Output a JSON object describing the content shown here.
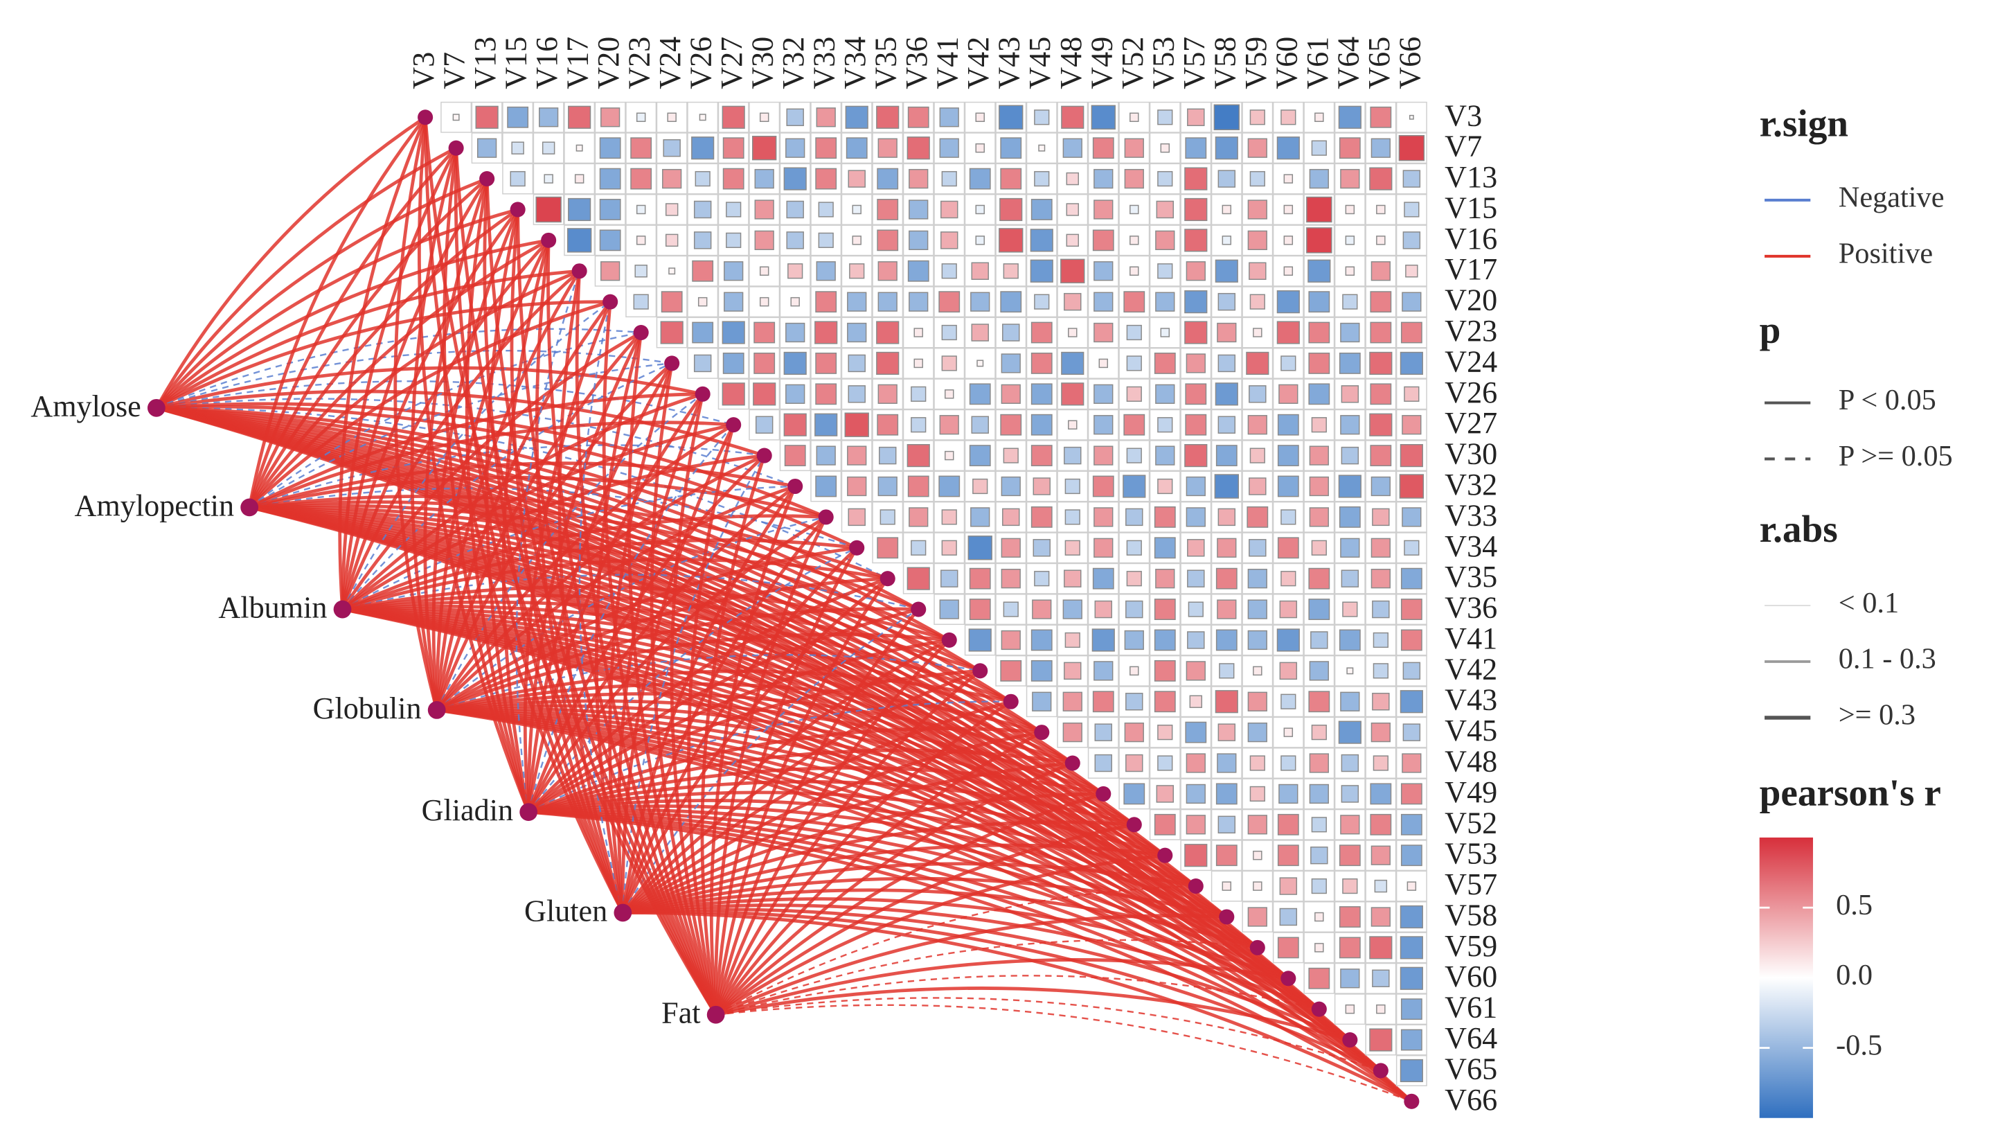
{
  "chart_data": {
    "type": "correlation-network",
    "variables": [
      "V3",
      "V7",
      "V13",
      "V15",
      "V16",
      "V17",
      "V20",
      "V23",
      "V24",
      "V26",
      "V27",
      "V30",
      "V32",
      "V33",
      "V34",
      "V35",
      "V36",
      "V41",
      "V42",
      "V43",
      "V45",
      "V48",
      "V49",
      "V52",
      "V53",
      "V57",
      "V58",
      "V59",
      "V60",
      "V61",
      "V64",
      "V65",
      "V66"
    ],
    "r": [
      [
        0.05,
        0.7,
        -0.6,
        -0.5,
        0.7,
        0.5,
        -0.1,
        0.1,
        0.05,
        0.7,
        0.1,
        -0.4,
        0.5,
        -0.7,
        0.7,
        0.6,
        -0.5,
        0.1,
        -0.8,
        -0.3,
        0.7,
        -0.8,
        0.1,
        -0.3,
        0.4,
        -0.9,
        0.3,
        0.3,
        0.1,
        -0.7,
        0.6,
        0.02
      ],
      [
        -0.5,
        -0.2,
        -0.2,
        0.05,
        -0.6,
        0.6,
        -0.4,
        -0.7,
        0.6,
        0.8,
        -0.5,
        0.6,
        -0.6,
        0.5,
        0.7,
        -0.5,
        0.1,
        -0.6,
        0.05,
        -0.5,
        0.6,
        0.5,
        0.1,
        -0.6,
        -0.7,
        0.5,
        -0.7,
        -0.3,
        0.6,
        -0.5,
        0.9
      ],
      [
        -0.3,
        -0.1,
        0.1,
        -0.6,
        0.6,
        0.5,
        -0.3,
        0.6,
        -0.5,
        -0.7,
        0.6,
        0.4,
        -0.6,
        0.5,
        -0.3,
        -0.6,
        0.6,
        -0.3,
        0.2,
        -0.5,
        0.5,
        -0.3,
        0.7,
        -0.4,
        -0.3,
        0.1,
        -0.5,
        0.5,
        0.7,
        -0.4
      ],
      [
        0.9,
        -0.7,
        -0.6,
        -0.1,
        0.2,
        -0.4,
        -0.3,
        0.5,
        -0.4,
        -0.3,
        -0.1,
        0.6,
        -0.5,
        0.4,
        -0.1,
        0.7,
        -0.6,
        0.2,
        0.5,
        -0.1,
        0.4,
        0.7,
        0.1,
        0.5,
        0.1,
        0.9,
        0.1,
        0.1,
        -0.3
      ],
      [
        -0.8,
        -0.6,
        0.1,
        0.2,
        -0.4,
        -0.3,
        0.5,
        -0.4,
        -0.3,
        0.1,
        0.6,
        -0.5,
        0.4,
        -0.1,
        0.8,
        -0.7,
        0.2,
        0.6,
        0.1,
        0.5,
        0.7,
        -0.1,
        0.5,
        0.1,
        0.9,
        -0.1,
        0.1,
        -0.4
      ],
      [
        0.5,
        -0.2,
        0.05,
        0.6,
        -0.5,
        0.1,
        0.3,
        -0.5,
        0.3,
        0.5,
        -0.6,
        -0.3,
        0.4,
        0.3,
        -0.7,
        0.8,
        -0.5,
        0.1,
        -0.3,
        0.5,
        -0.7,
        0.4,
        0.1,
        -0.7,
        0.1,
        0.5,
        0.2
      ],
      [
        -0.3,
        0.6,
        0.1,
        -0.5,
        0.1,
        0.1,
        0.6,
        -0.5,
        -0.5,
        -0.5,
        0.6,
        -0.5,
        -0.6,
        -0.3,
        0.4,
        -0.5,
        0.6,
        -0.5,
        -0.7,
        -0.4,
        0.3,
        -0.7,
        -0.6,
        -0.3,
        0.6,
        -0.5
      ],
      [
        0.7,
        -0.6,
        -0.7,
        0.6,
        -0.5,
        0.7,
        -0.5,
        0.7,
        0.1,
        -0.3,
        0.4,
        -0.4,
        0.6,
        0.1,
        0.5,
        -0.3,
        -0.1,
        0.7,
        0.5,
        0.1,
        0.7,
        0.6,
        -0.5,
        0.6,
        0.6
      ],
      [
        -0.4,
        -0.6,
        0.6,
        -0.7,
        0.6,
        -0.4,
        0.7,
        0.1,
        0.3,
        0.05,
        -0.5,
        0.6,
        -0.7,
        0.1,
        -0.3,
        0.6,
        0.5,
        -0.4,
        0.7,
        -0.3,
        0.6,
        -0.6,
        0.7,
        -0.7
      ],
      [
        0.7,
        0.7,
        -0.5,
        0.6,
        -0.4,
        0.5,
        -0.3,
        0.1,
        -0.6,
        0.5,
        -0.6,
        0.7,
        -0.5,
        0.3,
        -0.5,
        0.6,
        -0.7,
        -0.4,
        0.5,
        -0.6,
        0.4,
        0.6,
        0.3
      ],
      [
        -0.4,
        0.7,
        -0.7,
        0.8,
        0.6,
        -0.3,
        0.5,
        -0.4,
        0.6,
        -0.6,
        0.1,
        -0.5,
        0.6,
        -0.3,
        0.6,
        -0.4,
        0.5,
        -0.6,
        0.3,
        -0.5,
        0.7,
        0.5
      ],
      [
        0.6,
        -0.5,
        0.5,
        -0.4,
        0.7,
        0.1,
        -0.6,
        0.3,
        0.6,
        -0.4,
        0.5,
        -0.3,
        -0.5,
        0.7,
        -0.6,
        0.3,
        -0.6,
        0.5,
        -0.4,
        0.6,
        0.7
      ],
      [
        -0.6,
        0.5,
        -0.5,
        0.6,
        -0.6,
        0.3,
        -0.5,
        0.4,
        -0.3,
        0.6,
        -0.7,
        0.3,
        -0.5,
        -0.8,
        0.4,
        -0.6,
        0.5,
        -0.7,
        -0.5,
        0.8
      ],
      [
        0.4,
        -0.3,
        0.5,
        0.3,
        -0.5,
        0.4,
        0.6,
        -0.3,
        0.5,
        -0.4,
        0.6,
        -0.5,
        0.4,
        0.6,
        -0.3,
        0.5,
        -0.6,
        0.4,
        -0.5
      ],
      [
        0.6,
        -0.3,
        0.3,
        -0.8,
        0.5,
        -0.4,
        0.3,
        0.5,
        -0.3,
        -0.6,
        0.4,
        0.5,
        -0.4,
        0.6,
        0.3,
        -0.5,
        0.5,
        -0.3
      ],
      [
        0.7,
        -0.4,
        0.6,
        0.5,
        -0.3,
        0.4,
        -0.6,
        0.3,
        0.5,
        -0.4,
        0.6,
        -0.5,
        0.3,
        0.6,
        -0.4,
        0.5,
        -0.6
      ],
      [
        -0.5,
        0.6,
        -0.3,
        0.5,
        -0.5,
        0.4,
        -0.4,
        0.6,
        -0.3,
        0.5,
        -0.5,
        0.4,
        -0.6,
        0.3,
        -0.4,
        0.6
      ],
      [
        -0.7,
        0.5,
        -0.6,
        0.3,
        -0.7,
        -0.5,
        -0.6,
        -0.4,
        -0.6,
        -0.5,
        -0.7,
        -0.4,
        -0.6,
        -0.3,
        0.6
      ],
      [
        0.6,
        -0.6,
        0.4,
        -0.5,
        0.1,
        0.6,
        0.5,
        -0.3,
        0.1,
        0.4,
        -0.5,
        0.05,
        -0.3,
        -0.4
      ],
      [
        -0.5,
        0.5,
        0.6,
        -0.4,
        0.6,
        0.2,
        0.7,
        0.5,
        -0.3,
        0.6,
        -0.5,
        0.4,
        -0.7
      ],
      [
        0.5,
        -0.4,
        0.5,
        0.3,
        -0.6,
        0.4,
        -0.5,
        0.1,
        0.3,
        -0.7,
        0.5,
        -0.4
      ],
      [
        -0.4,
        0.4,
        -0.3,
        0.5,
        -0.5,
        0.3,
        -0.3,
        0.5,
        -0.4,
        0.3,
        0.5
      ],
      [
        -0.6,
        0.4,
        -0.5,
        -0.6,
        0.3,
        -0.5,
        -0.5,
        -0.4,
        -0.6,
        0.6
      ],
      [
        0.6,
        0.5,
        -0.4,
        0.5,
        0.6,
        -0.3,
        0.5,
        0.6,
        -0.6
      ],
      [
        0.7,
        0.6,
        0.1,
        0.6,
        -0.4,
        0.6,
        0.5,
        -0.6
      ],
      [
        0.1,
        0.1,
        0.4,
        -0.3,
        0.3,
        -0.2,
        0.1
      ],
      [
        0.5,
        -0.4,
        0.1,
        0.6,
        0.5,
        -0.7
      ],
      [
        0.6,
        0.1,
        0.6,
        0.7,
        -0.7
      ],
      [
        0.6,
        -0.5,
        -0.4,
        -0.7
      ],
      [
        0.1,
        0.1,
        -0.6
      ],
      [
        0.7,
        -0.6
      ],
      [
        -0.7
      ]
    ],
    "sources": [
      {
        "name": "Amylose",
        "r": [
          0.6,
          0.5,
          0.5,
          0.4,
          0.4,
          0.5,
          0.4,
          -0.2,
          -0.15,
          0.4,
          -0.2,
          0.5,
          -0.2,
          0.4,
          0.4,
          -0.2,
          0.4,
          0.5,
          0.4,
          0.5,
          0.4,
          0.4,
          0.5,
          0.4,
          0.4,
          0.3,
          0.4,
          0.4,
          0.35,
          0.4,
          0.4,
          0.3,
          0.4
        ],
        "p": [
          0.01,
          0.01,
          0.01,
          0.02,
          0.02,
          0.01,
          0.01,
          0.2,
          0.3,
          0.01,
          0.2,
          0.01,
          0.2,
          0.01,
          0.01,
          0.2,
          0.01,
          0.01,
          0.01,
          0.01,
          0.01,
          0.01,
          0.01,
          0.01,
          0.01,
          0.02,
          0.01,
          0.01,
          0.03,
          0.01,
          0.01,
          0.04,
          0.01
        ]
      },
      {
        "name": "Amylopectin",
        "r": [
          0.5,
          0.5,
          0.4,
          0.4,
          0.3,
          0.5,
          0.4,
          -0.2,
          -0.2,
          0.4,
          0.4,
          -0.15,
          0.4,
          0.5,
          -0.2,
          0.4,
          0.4,
          0.5,
          0.4,
          0.4,
          0.5,
          0.4,
          0.4,
          0.4,
          0.3,
          0.4,
          0.4,
          0.4,
          0.3,
          0.4,
          0.35,
          0.4,
          0.4
        ],
        "p": [
          0.01,
          0.01,
          0.01,
          0.01,
          0.04,
          0.01,
          0.01,
          0.2,
          0.2,
          0.01,
          0.01,
          0.3,
          0.01,
          0.01,
          0.2,
          0.01,
          0.01,
          0.01,
          0.01,
          0.01,
          0.01,
          0.01,
          0.01,
          0.01,
          0.04,
          0.01,
          0.01,
          0.01,
          0.04,
          0.01,
          0.02,
          0.01,
          0.01
        ]
      },
      {
        "name": "Albumin",
        "r": [
          0.4,
          0.4,
          0.5,
          0.3,
          0.4,
          0.4,
          -0.2,
          0.4,
          -0.15,
          0.4,
          0.4,
          0.5,
          -0.2,
          0.4,
          0.4,
          0.4,
          -0.1,
          0.5,
          0.4,
          0.4,
          0.4,
          0.5,
          0.4,
          0.4,
          0.4,
          0.3,
          0.4,
          0.4,
          0.3,
          0.4,
          0.4,
          0.3,
          0.3
        ],
        "p": [
          0.01,
          0.01,
          0.01,
          0.04,
          0.01,
          0.01,
          0.2,
          0.01,
          0.3,
          0.01,
          0.01,
          0.01,
          0.2,
          0.01,
          0.01,
          0.01,
          0.5,
          0.01,
          0.01,
          0.01,
          0.01,
          0.01,
          0.01,
          0.01,
          0.01,
          0.04,
          0.01,
          0.01,
          0.04,
          0.01,
          0.01,
          0.04,
          0.04
        ]
      },
      {
        "name": "Globulin",
        "r": [
          0.5,
          0.4,
          0.4,
          0.4,
          0.4,
          0.3,
          0.4,
          0.4,
          0.5,
          -0.2,
          0.4,
          0.4,
          0.4,
          -0.2,
          0.5,
          0.4,
          0.4,
          0.4,
          -0.15,
          0.4,
          0.4,
          0.4,
          0.5,
          0.4,
          0.4,
          0.4,
          0.3,
          0.4,
          0.4,
          0.3,
          0.4,
          0.3,
          0.3
        ],
        "p": [
          0.01,
          0.01,
          0.01,
          0.01,
          0.01,
          0.04,
          0.01,
          0.01,
          0.01,
          0.2,
          0.01,
          0.01,
          0.01,
          0.2,
          0.01,
          0.01,
          0.01,
          0.01,
          0.3,
          0.01,
          0.01,
          0.01,
          0.01,
          0.01,
          0.01,
          0.01,
          0.04,
          0.01,
          0.01,
          0.04,
          0.01,
          0.04,
          0.04
        ]
      },
      {
        "name": "Gliadin",
        "r": [
          0.4,
          0.4,
          0.4,
          0.3,
          0.4,
          -0.2,
          0.4,
          0.4,
          0.4,
          0.4,
          -0.2,
          0.4,
          0.5,
          0.4,
          -0.15,
          0.4,
          0.4,
          0.4,
          0.4,
          -0.2,
          0.4,
          0.4,
          0.4,
          0.3,
          0.4,
          0.4,
          0.3,
          0.4,
          0.3,
          0.3,
          0.4,
          0.3,
          0.3
        ],
        "p": [
          0.01,
          0.01,
          0.01,
          0.04,
          0.01,
          0.2,
          0.01,
          0.01,
          0.01,
          0.01,
          0.2,
          0.01,
          0.01,
          0.01,
          0.3,
          0.01,
          0.01,
          0.01,
          0.01,
          0.2,
          0.01,
          0.01,
          0.01,
          0.04,
          0.01,
          0.01,
          0.04,
          0.01,
          0.04,
          0.04,
          0.01,
          0.04,
          0.04
        ]
      },
      {
        "name": "Gluten",
        "r": [
          0.4,
          0.4,
          0.3,
          0.4,
          0.4,
          0.4,
          -0.2,
          0.4,
          0.4,
          0.3,
          0.4,
          -0.2,
          0.4,
          0.4,
          0.4,
          0.4,
          -0.15,
          0.4,
          0.4,
          0.4,
          0.3,
          0.4,
          0.4,
          0.4,
          0.3,
          0.4,
          0.3,
          0.3,
          0.4,
          0.3,
          0.3,
          0.3,
          0.3
        ],
        "p": [
          0.01,
          0.01,
          0.04,
          0.01,
          0.01,
          0.01,
          0.2,
          0.01,
          0.01,
          0.04,
          0.01,
          0.2,
          0.01,
          0.01,
          0.01,
          0.01,
          0.3,
          0.01,
          0.01,
          0.01,
          0.04,
          0.01,
          0.01,
          0.01,
          0.04,
          0.01,
          0.04,
          0.04,
          0.01,
          0.04,
          0.04,
          0.04,
          0.04
        ]
      },
      {
        "name": "Fat",
        "r": [
          0.5,
          0.5,
          0.4,
          0.4,
          0.4,
          0.4,
          0.4,
          0.4,
          0.4,
          0.4,
          0.4,
          0.4,
          0.4,
          0.4,
          0.4,
          0.4,
          0.4,
          0.35,
          0.35,
          0.3,
          0.3,
          0.3,
          0.3,
          0.3,
          0.3,
          0.2,
          0.3,
          0.2,
          0.3,
          0.2,
          0.3,
          0.2,
          0.2
        ],
        "p": [
          0.01,
          0.01,
          0.01,
          0.01,
          0.01,
          0.01,
          0.01,
          0.01,
          0.01,
          0.01,
          0.01,
          0.01,
          0.01,
          0.01,
          0.01,
          0.01,
          0.01,
          0.02,
          0.02,
          0.04,
          0.04,
          0.04,
          0.04,
          0.04,
          0.04,
          0.2,
          0.04,
          0.2,
          0.04,
          0.2,
          0.04,
          0.2,
          0.2
        ]
      }
    ],
    "link_colors": {
      "negative": "#5a7fd0",
      "positive": "#e0342b"
    },
    "node_color": "#a0145a",
    "colorscale": [
      "#2f6fbf",
      "#ffffff",
      "#d72f3b"
    ],
    "clim": [
      -1,
      1
    ],
    "legend": {
      "sign": {
        "title": "r.sign",
        "labels": [
          "Negative",
          "Positive"
        ]
      },
      "p": {
        "title": "p",
        "labels": [
          "P < 0.05",
          "P >= 0.05"
        ],
        "breaks": [
          0.05
        ]
      },
      "abs": {
        "title": "r.abs",
        "labels": [
          "< 0.1",
          "0.1 - 0.3",
          ">= 0.3"
        ],
        "breaks": [
          0.1,
          0.3
        ]
      },
      "colorbar": {
        "title": "pearson's r",
        "ticks": [
          0.5,
          {
            "value": 0,
            "label": "0.0"
          },
          -0.5
        ]
      }
    }
  }
}
